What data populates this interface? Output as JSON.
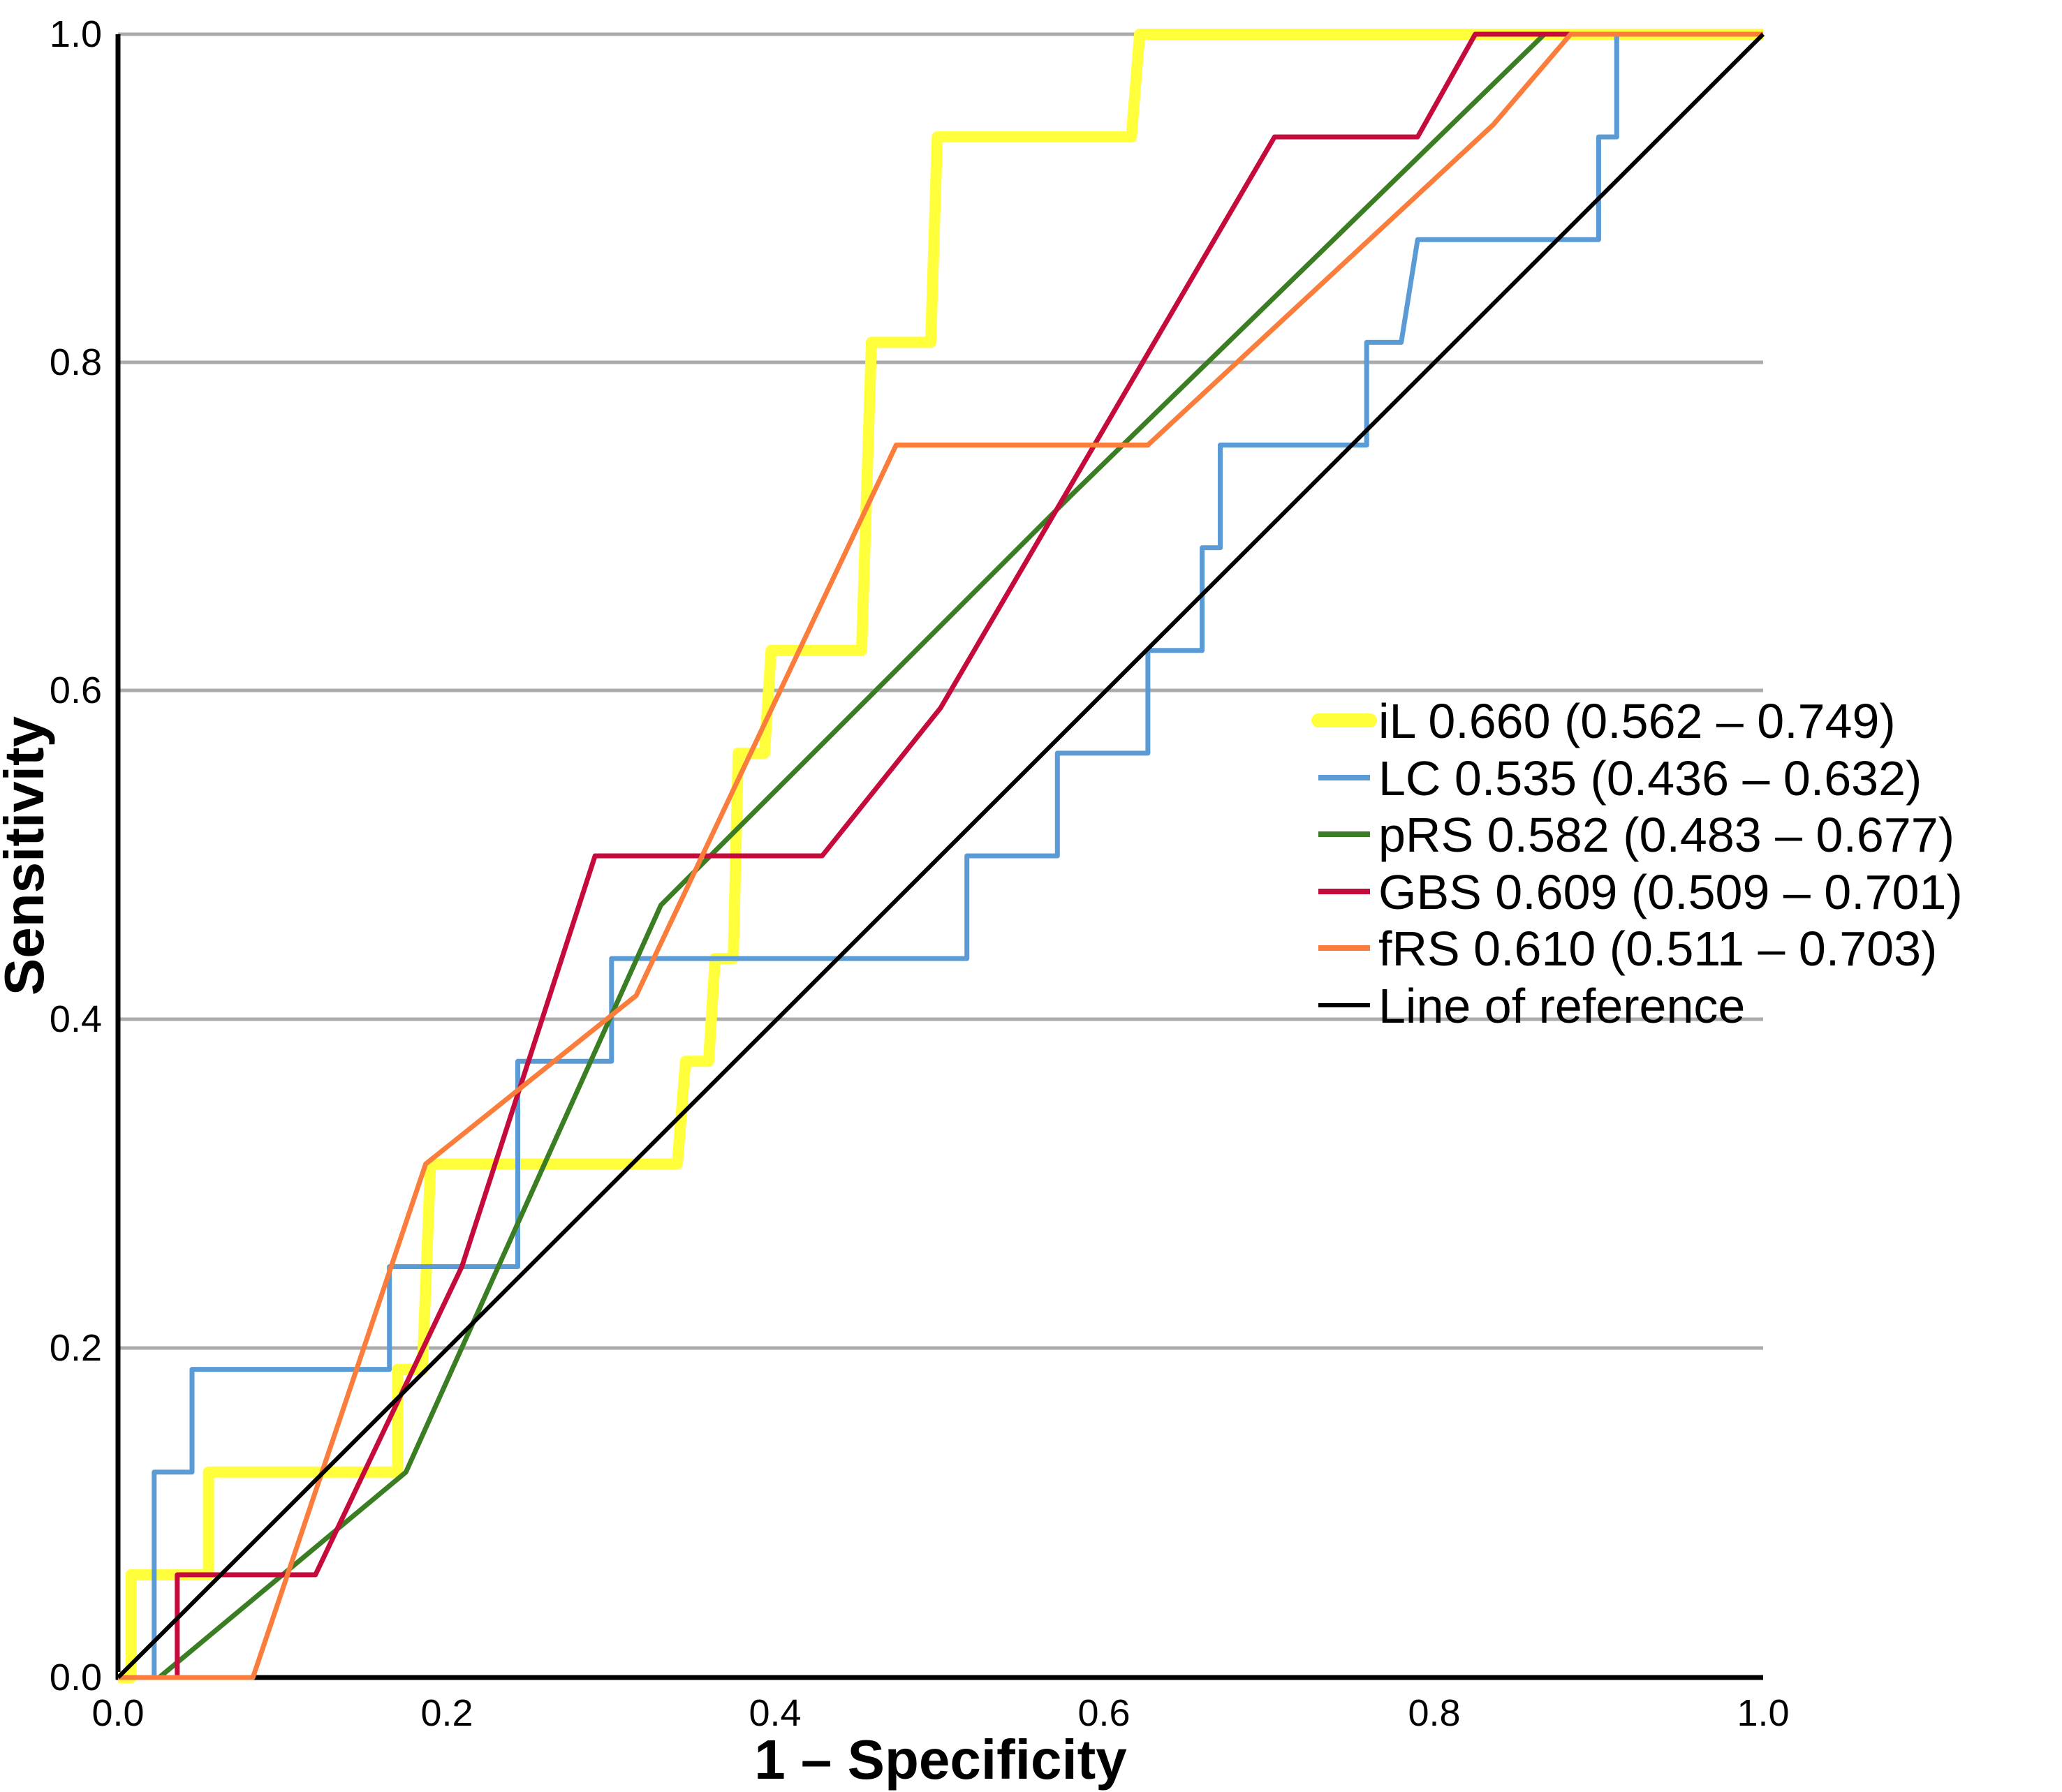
{
  "axes": {
    "x": {
      "label": "1 – Specificity",
      "ticks": [
        "0.0",
        "0.2",
        "0.4",
        "0.6",
        "0.8",
        "1.0"
      ]
    },
    "y": {
      "label": "Sensitivity",
      "ticks": [
        "0.0",
        "0.2",
        "0.4",
        "0.6",
        "0.8",
        "1.0"
      ]
    }
  },
  "colors": {
    "gridline": "#ABABAB",
    "axis": "#000000",
    "background": "#FFFFFF"
  },
  "chart_data": {
    "type": "line",
    "subtype": "roc-curves",
    "title": "",
    "xlabel": "1 – Specificity",
    "ylabel": "Sensitivity",
    "xlim": [
      0,
      1
    ],
    "ylim": [
      0,
      1
    ],
    "grid": "horizontal-only, gray, at 0.2 intervals",
    "legend_position": "right-middle, no border",
    "series": [
      {
        "name": "iL",
        "label": "iL 0.660 (0.562 – 0.749)",
        "auc": 0.66,
        "ci_low": 0.562,
        "ci_high": 0.749,
        "color": "#FFFF3B",
        "width": 16,
        "points": [
          [
            0,
            0
          ],
          [
            0.008,
            0
          ],
          [
            0.008,
            0.0625
          ],
          [
            0.055,
            0.0625
          ],
          [
            0.055,
            0.125
          ],
          [
            0.17,
            0.125
          ],
          [
            0.17,
            0.1875
          ],
          [
            0.185,
            0.1875
          ],
          [
            0.19,
            0.3125
          ],
          [
            0.34,
            0.3125
          ],
          [
            0.345,
            0.375
          ],
          [
            0.359,
            0.375
          ],
          [
            0.363,
            0.4375
          ],
          [
            0.374,
            0.4375
          ],
          [
            0.377,
            0.5625
          ],
          [
            0.393,
            0.5625
          ],
          [
            0.397,
            0.625
          ],
          [
            0.452,
            0.625
          ],
          [
            0.458,
            0.8125
          ],
          [
            0.494,
            0.8125
          ],
          [
            0.498,
            0.9375
          ],
          [
            0.616,
            0.9375
          ],
          [
            0.621,
            1
          ],
          [
            1,
            1
          ]
        ]
      },
      {
        "name": "LC",
        "label": "LC 0.535 (0.436 – 0.632)",
        "auc": 0.535,
        "ci_low": 0.436,
        "ci_high": 0.632,
        "color": "#5B9BD5",
        "width": 7,
        "points": [
          [
            0,
            0
          ],
          [
            0.022,
            0
          ],
          [
            0.022,
            0.125
          ],
          [
            0.045,
            0.125
          ],
          [
            0.045,
            0.1875
          ],
          [
            0.165,
            0.1875
          ],
          [
            0.165,
            0.25
          ],
          [
            0.243,
            0.25
          ],
          [
            0.243,
            0.375
          ],
          [
            0.3,
            0.375
          ],
          [
            0.3,
            0.4375
          ],
          [
            0.516,
            0.4375
          ],
          [
            0.516,
            0.5
          ],
          [
            0.571,
            0.5
          ],
          [
            0.571,
            0.5625
          ],
          [
            0.626,
            0.5625
          ],
          [
            0.626,
            0.625
          ],
          [
            0.659,
            0.625
          ],
          [
            0.659,
            0.6875
          ],
          [
            0.67,
            0.6875
          ],
          [
            0.67,
            0.75
          ],
          [
            0.759,
            0.75
          ],
          [
            0.759,
            0.8125
          ],
          [
            0.78,
            0.8125
          ],
          [
            0.79,
            0.875
          ],
          [
            0.9,
            0.875
          ],
          [
            0.9,
            0.9375
          ],
          [
            0.911,
            0.9375
          ],
          [
            0.911,
            1
          ],
          [
            1,
            1
          ]
        ]
      },
      {
        "name": "pRS",
        "label": "pRS 0.582 (0.483 – 0.677)",
        "auc": 0.582,
        "ci_low": 0.483,
        "ci_high": 0.677,
        "color": "#3A7D23",
        "width": 7,
        "points": [
          [
            0,
            0
          ],
          [
            0.025,
            0
          ],
          [
            0.175,
            0.125
          ],
          [
            0.33,
            0.47
          ],
          [
            0.58,
            0.72
          ],
          [
            0.867,
            1
          ],
          [
            1,
            1
          ]
        ]
      },
      {
        "name": "GBS",
        "label": "GBS 0.609 (0.509 – 0.701)",
        "auc": 0.609,
        "ci_low": 0.509,
        "ci_high": 0.701,
        "color": "#C40B3C",
        "width": 7,
        "points": [
          [
            0,
            0
          ],
          [
            0.036,
            0
          ],
          [
            0.036,
            0.0625
          ],
          [
            0.12,
            0.0625
          ],
          [
            0.209,
            0.25
          ],
          [
            0.29,
            0.5
          ],
          [
            0.428,
            0.5
          ],
          [
            0.5,
            0.59
          ],
          [
            0.703,
            0.9375
          ],
          [
            0.79,
            0.9375
          ],
          [
            0.825,
            1
          ],
          [
            1,
            1
          ]
        ]
      },
      {
        "name": "fRS",
        "label": "fRS 0.610 (0.511 – 0.703)",
        "auc": 0.61,
        "ci_low": 0.511,
        "ci_high": 0.703,
        "color": "#FA7D3C",
        "width": 7,
        "points": [
          [
            0,
            0
          ],
          [
            0.082,
            0
          ],
          [
            0.187,
            0.3125
          ],
          [
            0.315,
            0.415
          ],
          [
            0.473,
            0.75
          ],
          [
            0.626,
            0.75
          ],
          [
            0.836,
            0.945
          ],
          [
            0.883,
            1
          ],
          [
            1,
            1
          ]
        ]
      },
      {
        "name": "Line of reference",
        "label": "Line of reference",
        "color": "#000000",
        "width": 6,
        "points": [
          [
            0,
            0
          ],
          [
            1,
            1
          ]
        ]
      }
    ]
  }
}
